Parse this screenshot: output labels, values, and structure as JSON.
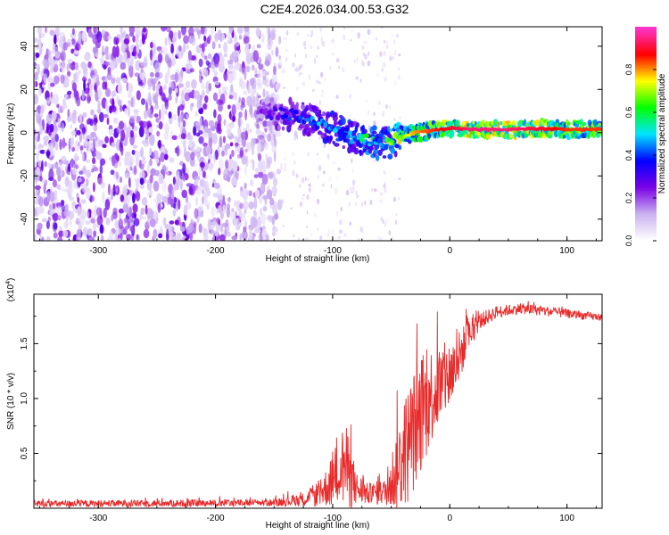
{
  "title": "C2E4.2026.034.00.53.G32",
  "chart_data": [
    {
      "type": "heatmap",
      "xlabel": "Height of straight line (km)",
      "ylabel": "Frequency (Hz)",
      "xlim": [
        -355,
        130
      ],
      "ylim": [
        -50,
        49
      ],
      "xticks": [
        -300,
        -200,
        -100,
        0,
        100
      ],
      "yticks": [
        -40,
        -20,
        0,
        20,
        40
      ],
      "colorbar": {
        "label": "Normalized spectral amplitude",
        "range": [
          0,
          1
        ],
        "ticks": [
          0.0,
          0.2,
          0.4,
          0.6,
          0.8
        ],
        "tick_labels": [
          "0.0",
          "0.2",
          "0.4",
          "0.6",
          "0.8"
        ],
        "colors": [
          "#ffffff",
          "#c9b0f0",
          "#7a00e6",
          "#0000ff",
          "#00e5ff",
          "#00ff00",
          "#ffff00",
          "#ff0000",
          "#ff33cc"
        ]
      },
      "noise_region": {
        "x_range": [
          -355,
          -145
        ],
        "freq_range": [
          -50,
          49
        ],
        "amplitude_range": [
          0.05,
          0.3
        ]
      },
      "sparse_noise_region": {
        "x_range": [
          -145,
          -40
        ],
        "amplitude_range": [
          0.02,
          0.12
        ]
      },
      "ridge": [
        {
          "x": -165,
          "freq": 10,
          "amplitude": 0.22
        },
        {
          "x": -150,
          "freq": 9,
          "amplitude": 0.3
        },
        {
          "x": -135,
          "freq": 8,
          "amplitude": 0.38
        },
        {
          "x": -120,
          "freq": 6,
          "amplitude": 0.42
        },
        {
          "x": -105,
          "freq": 3,
          "amplitude": 0.45
        },
        {
          "x": -90,
          "freq": 0,
          "amplitude": 0.5
        },
        {
          "x": -80,
          "freq": -3,
          "amplitude": 0.48
        },
        {
          "x": -70,
          "freq": -4,
          "amplitude": 0.55
        },
        {
          "x": -60,
          "freq": -5,
          "amplitude": 0.52
        },
        {
          "x": -50,
          "freq": -4,
          "amplitude": 0.6
        },
        {
          "x": -40,
          "freq": -2,
          "amplitude": 0.7
        },
        {
          "x": -30,
          "freq": 0,
          "amplitude": 0.8
        },
        {
          "x": -15,
          "freq": 1,
          "amplitude": 0.85
        },
        {
          "x": 0,
          "freq": 2,
          "amplitude": 0.9
        },
        {
          "x": 20,
          "freq": 1.5,
          "amplitude": 0.95
        },
        {
          "x": 50,
          "freq": 1.5,
          "amplitude": 0.95
        },
        {
          "x": 80,
          "freq": 2,
          "amplitude": 0.9
        },
        {
          "x": 100,
          "freq": 1.5,
          "amplitude": 0.85
        },
        {
          "x": 130,
          "freq": 1.5,
          "amplitude": 0.85
        }
      ]
    },
    {
      "type": "line",
      "xlabel": "Height of straight line (km)",
      "ylabel": "SNR (10 * v/v)",
      "y_multiplier": "(x10",
      "y_multiplier_exp": "4",
      "y_multiplier_close": ")",
      "xlim": [
        -355,
        130
      ],
      "ylim": [
        0,
        1.95
      ],
      "xticks": [
        -300,
        -200,
        -100,
        0,
        100
      ],
      "yticks": [
        0.5,
        1.0,
        1.5
      ],
      "ytick_labels": [
        "0.5",
        "1.0",
        "1.5"
      ],
      "series": [
        {
          "color": "#e82a2a",
          "envelope": [
            {
              "x": -355,
              "base": 0.04,
              "spread": 0.04
            },
            {
              "x": -150,
              "base": 0.05,
              "spread": 0.04
            },
            {
              "x": -125,
              "base": 0.08,
              "spread": 0.08
            },
            {
              "x": -110,
              "base": 0.14,
              "spread": 0.16
            },
            {
              "x": -100,
              "base": 0.25,
              "spread": 0.3
            },
            {
              "x": -95,
              "base": 0.35,
              "spread": 0.4
            },
            {
              "x": -90,
              "base": 0.4,
              "spread": 0.5
            },
            {
              "x": -85,
              "base": 0.3,
              "spread": 0.4
            },
            {
              "x": -80,
              "base": 0.18,
              "spread": 0.2
            },
            {
              "x": -70,
              "base": 0.13,
              "spread": 0.12
            },
            {
              "x": -55,
              "base": 0.15,
              "spread": 0.15
            },
            {
              "x": -45,
              "base": 0.35,
              "spread": 0.5
            },
            {
              "x": -35,
              "base": 0.6,
              "spread": 0.7
            },
            {
              "x": -25,
              "base": 0.85,
              "spread": 0.7
            },
            {
              "x": -15,
              "base": 1.05,
              "spread": 0.55
            },
            {
              "x": -5,
              "base": 1.15,
              "spread": 0.45
            },
            {
              "x": 5,
              "base": 1.3,
              "spread": 0.35
            },
            {
              "x": 15,
              "base": 1.55,
              "spread": 0.2
            },
            {
              "x": 25,
              "base": 1.7,
              "spread": 0.1
            },
            {
              "x": 40,
              "base": 1.79,
              "spread": 0.07
            },
            {
              "x": 60,
              "base": 1.82,
              "spread": 0.06
            },
            {
              "x": 80,
              "base": 1.8,
              "spread": 0.06
            },
            {
              "x": 110,
              "base": 1.76,
              "spread": 0.05
            },
            {
              "x": 130,
              "base": 1.74,
              "spread": 0.04
            }
          ]
        }
      ]
    }
  ]
}
